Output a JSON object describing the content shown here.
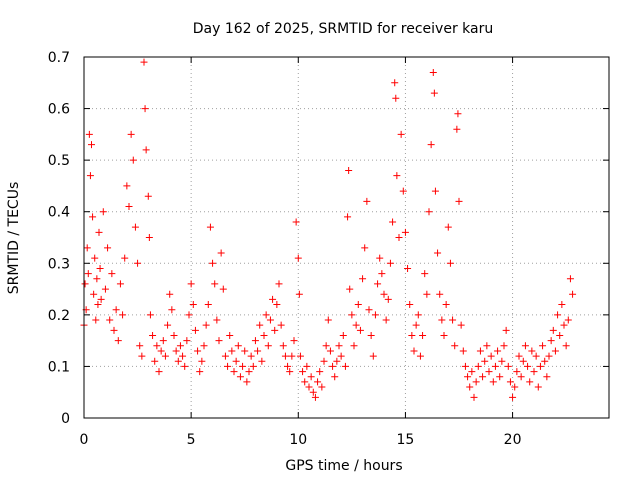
{
  "chart_data": {
    "type": "scatter",
    "title": "Day 162 of 2025, SRMTID for receiver karu",
    "xlabel": "GPS time / hours",
    "ylabel": "SRMTID / TECUs",
    "xlim": [
      0,
      24.5
    ],
    "ylim": [
      0,
      0.7
    ],
    "xticks": [
      0,
      5,
      10,
      15,
      20
    ],
    "yticks": [
      0,
      0.1,
      0.2,
      0.3,
      0.4,
      0.5,
      0.6,
      0.7
    ],
    "xtick_labels": [
      "0",
      "5",
      "10",
      "15",
      "20"
    ],
    "ytick_labels": [
      "0",
      "0.1",
      "0.2",
      "0.3",
      "0.4",
      "0.5",
      "0.6",
      "0.7"
    ],
    "grid": true,
    "marker": "plus",
    "color": "#ff0000",
    "series": [
      {
        "name": "SRMTID",
        "points": [
          [
            0.0,
            0.18
          ],
          [
            0.05,
            0.26
          ],
          [
            0.1,
            0.21
          ],
          [
            0.15,
            0.33
          ],
          [
            0.2,
            0.28
          ],
          [
            0.25,
            0.55
          ],
          [
            0.3,
            0.47
          ],
          [
            0.35,
            0.53
          ],
          [
            0.4,
            0.39
          ],
          [
            0.45,
            0.24
          ],
          [
            0.5,
            0.31
          ],
          [
            0.55,
            0.19
          ],
          [
            0.6,
            0.27
          ],
          [
            0.65,
            0.22
          ],
          [
            0.7,
            0.36
          ],
          [
            0.75,
            0.29
          ],
          [
            0.8,
            0.23
          ],
          [
            0.9,
            0.4
          ],
          [
            1.0,
            0.25
          ],
          [
            1.1,
            0.33
          ],
          [
            1.2,
            0.19
          ],
          [
            1.3,
            0.28
          ],
          [
            1.4,
            0.17
          ],
          [
            1.5,
            0.21
          ],
          [
            1.6,
            0.15
          ],
          [
            1.7,
            0.26
          ],
          [
            1.8,
            0.2
          ],
          [
            1.9,
            0.31
          ],
          [
            2.0,
            0.45
          ],
          [
            2.1,
            0.41
          ],
          [
            2.2,
            0.55
          ],
          [
            2.3,
            0.5
          ],
          [
            2.4,
            0.37
          ],
          [
            2.5,
            0.3
          ],
          [
            2.6,
            0.14
          ],
          [
            2.7,
            0.12
          ],
          [
            2.8,
            0.69
          ],
          [
            2.85,
            0.6
          ],
          [
            2.9,
            0.52
          ],
          [
            3.0,
            0.43
          ],
          [
            3.05,
            0.35
          ],
          [
            3.1,
            0.2
          ],
          [
            3.2,
            0.16
          ],
          [
            3.3,
            0.11
          ],
          [
            3.4,
            0.14
          ],
          [
            3.5,
            0.09
          ],
          [
            3.6,
            0.13
          ],
          [
            3.7,
            0.15
          ],
          [
            3.8,
            0.12
          ],
          [
            3.9,
            0.18
          ],
          [
            4.0,
            0.24
          ],
          [
            4.1,
            0.21
          ],
          [
            4.2,
            0.16
          ],
          [
            4.3,
            0.13
          ],
          [
            4.4,
            0.11
          ],
          [
            4.5,
            0.14
          ],
          [
            4.6,
            0.12
          ],
          [
            4.7,
            0.1
          ],
          [
            4.8,
            0.15
          ],
          [
            4.9,
            0.2
          ],
          [
            5.0,
            0.26
          ],
          [
            5.1,
            0.22
          ],
          [
            5.2,
            0.17
          ],
          [
            5.3,
            0.13
          ],
          [
            5.4,
            0.09
          ],
          [
            5.5,
            0.11
          ],
          [
            5.6,
            0.14
          ],
          [
            5.7,
            0.18
          ],
          [
            5.8,
            0.22
          ],
          [
            5.9,
            0.37
          ],
          [
            6.0,
            0.3
          ],
          [
            6.1,
            0.26
          ],
          [
            6.2,
            0.19
          ],
          [
            6.3,
            0.15
          ],
          [
            6.4,
            0.32
          ],
          [
            6.5,
            0.25
          ],
          [
            6.6,
            0.12
          ],
          [
            6.7,
            0.1
          ],
          [
            6.8,
            0.16
          ],
          [
            6.9,
            0.13
          ],
          [
            7.0,
            0.09
          ],
          [
            7.1,
            0.11
          ],
          [
            7.2,
            0.14
          ],
          [
            7.3,
            0.08
          ],
          [
            7.4,
            0.1
          ],
          [
            7.5,
            0.13
          ],
          [
            7.6,
            0.07
          ],
          [
            7.7,
            0.09
          ],
          [
            7.8,
            0.12
          ],
          [
            7.9,
            0.1
          ],
          [
            8.0,
            0.15
          ],
          [
            8.1,
            0.13
          ],
          [
            8.2,
            0.18
          ],
          [
            8.3,
            0.11
          ],
          [
            8.4,
            0.16
          ],
          [
            8.5,
            0.2
          ],
          [
            8.6,
            0.14
          ],
          [
            8.7,
            0.19
          ],
          [
            8.8,
            0.23
          ],
          [
            8.9,
            0.17
          ],
          [
            9.0,
            0.22
          ],
          [
            9.1,
            0.26
          ],
          [
            9.2,
            0.18
          ],
          [
            9.3,
            0.14
          ],
          [
            9.4,
            0.12
          ],
          [
            9.5,
            0.1
          ],
          [
            9.6,
            0.09
          ],
          [
            9.7,
            0.12
          ],
          [
            9.8,
            0.15
          ],
          [
            9.9,
            0.38
          ],
          [
            10.0,
            0.31
          ],
          [
            10.05,
            0.24
          ],
          [
            10.1,
            0.12
          ],
          [
            10.2,
            0.09
          ],
          [
            10.3,
            0.07
          ],
          [
            10.4,
            0.1
          ],
          [
            10.5,
            0.06
          ],
          [
            10.6,
            0.08
          ],
          [
            10.7,
            0.05
          ],
          [
            10.8,
            0.04
          ],
          [
            10.9,
            0.07
          ],
          [
            11.0,
            0.09
          ],
          [
            11.1,
            0.06
          ],
          [
            11.2,
            0.11
          ],
          [
            11.3,
            0.14
          ],
          [
            11.4,
            0.19
          ],
          [
            11.5,
            0.13
          ],
          [
            11.6,
            0.1
          ],
          [
            11.7,
            0.08
          ],
          [
            11.8,
            0.11
          ],
          [
            11.9,
            0.14
          ],
          [
            12.0,
            0.12
          ],
          [
            12.1,
            0.16
          ],
          [
            12.2,
            0.1
          ],
          [
            12.3,
            0.39
          ],
          [
            12.35,
            0.48
          ],
          [
            12.4,
            0.25
          ],
          [
            12.5,
            0.2
          ],
          [
            12.6,
            0.14
          ],
          [
            12.7,
            0.18
          ],
          [
            12.8,
            0.22
          ],
          [
            12.9,
            0.17
          ],
          [
            13.0,
            0.27
          ],
          [
            13.1,
            0.33
          ],
          [
            13.2,
            0.42
          ],
          [
            13.3,
            0.21
          ],
          [
            13.4,
            0.16
          ],
          [
            13.5,
            0.12
          ],
          [
            13.6,
            0.2
          ],
          [
            13.7,
            0.26
          ],
          [
            13.8,
            0.31
          ],
          [
            13.9,
            0.28
          ],
          [
            14.0,
            0.24
          ],
          [
            14.1,
            0.19
          ],
          [
            14.2,
            0.23
          ],
          [
            14.3,
            0.3
          ],
          [
            14.4,
            0.38
          ],
          [
            14.5,
            0.65
          ],
          [
            14.55,
            0.62
          ],
          [
            14.6,
            0.47
          ],
          [
            14.7,
            0.35
          ],
          [
            14.8,
            0.55
          ],
          [
            14.9,
            0.44
          ],
          [
            15.0,
            0.36
          ],
          [
            15.1,
            0.29
          ],
          [
            15.2,
            0.22
          ],
          [
            15.3,
            0.16
          ],
          [
            15.4,
            0.13
          ],
          [
            15.5,
            0.18
          ],
          [
            15.6,
            0.2
          ],
          [
            15.7,
            0.12
          ],
          [
            15.8,
            0.16
          ],
          [
            15.9,
            0.28
          ],
          [
            16.0,
            0.24
          ],
          [
            16.1,
            0.4
          ],
          [
            16.2,
            0.53
          ],
          [
            16.3,
            0.67
          ],
          [
            16.35,
            0.63
          ],
          [
            16.4,
            0.44
          ],
          [
            16.5,
            0.32
          ],
          [
            16.6,
            0.24
          ],
          [
            16.7,
            0.19
          ],
          [
            16.8,
            0.16
          ],
          [
            16.9,
            0.22
          ],
          [
            17.0,
            0.37
          ],
          [
            17.1,
            0.3
          ],
          [
            17.2,
            0.19
          ],
          [
            17.3,
            0.14
          ],
          [
            17.4,
            0.56
          ],
          [
            17.45,
            0.59
          ],
          [
            17.5,
            0.42
          ],
          [
            17.6,
            0.18
          ],
          [
            17.7,
            0.13
          ],
          [
            17.8,
            0.1
          ],
          [
            17.9,
            0.08
          ],
          [
            18.0,
            0.06
          ],
          [
            18.1,
            0.09
          ],
          [
            18.2,
            0.04
          ],
          [
            18.3,
            0.07
          ],
          [
            18.4,
            0.1
          ],
          [
            18.5,
            0.13
          ],
          [
            18.6,
            0.08
          ],
          [
            18.7,
            0.11
          ],
          [
            18.8,
            0.14
          ],
          [
            18.9,
            0.09
          ],
          [
            19.0,
            0.12
          ],
          [
            19.1,
            0.07
          ],
          [
            19.2,
            0.1
          ],
          [
            19.3,
            0.13
          ],
          [
            19.4,
            0.08
          ],
          [
            19.5,
            0.11
          ],
          [
            19.6,
            0.14
          ],
          [
            19.7,
            0.17
          ],
          [
            19.8,
            0.1
          ],
          [
            19.9,
            0.07
          ],
          [
            20.0,
            0.04
          ],
          [
            20.1,
            0.06
          ],
          [
            20.2,
            0.09
          ],
          [
            20.3,
            0.12
          ],
          [
            20.4,
            0.08
          ],
          [
            20.5,
            0.11
          ],
          [
            20.6,
            0.14
          ],
          [
            20.7,
            0.1
          ],
          [
            20.8,
            0.07
          ],
          [
            20.9,
            0.13
          ],
          [
            21.0,
            0.09
          ],
          [
            21.1,
            0.12
          ],
          [
            21.2,
            0.06
          ],
          [
            21.3,
            0.1
          ],
          [
            21.4,
            0.14
          ],
          [
            21.5,
            0.11
          ],
          [
            21.6,
            0.08
          ],
          [
            21.7,
            0.12
          ],
          [
            21.8,
            0.15
          ],
          [
            21.9,
            0.17
          ],
          [
            22.0,
            0.13
          ],
          [
            22.1,
            0.2
          ],
          [
            22.2,
            0.16
          ],
          [
            22.3,
            0.22
          ],
          [
            22.4,
            0.18
          ],
          [
            22.5,
            0.14
          ],
          [
            22.6,
            0.19
          ],
          [
            22.7,
            0.27
          ],
          [
            22.8,
            0.24
          ]
        ]
      }
    ]
  }
}
